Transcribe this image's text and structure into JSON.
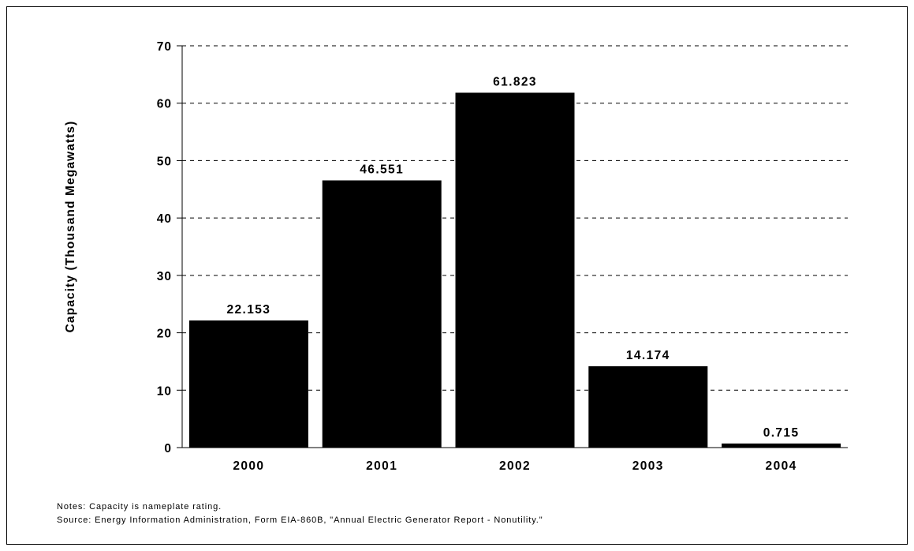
{
  "chart_data": {
    "type": "bar",
    "categories": [
      "2000",
      "2001",
      "2002",
      "2003",
      "2004"
    ],
    "values": [
      22.153,
      46.551,
      61.823,
      14.174,
      0.715
    ],
    "value_labels": [
      "22.153",
      "46.551",
      "61.823",
      "14.174",
      "0.715"
    ],
    "title": "",
    "xlabel": "",
    "ylabel": "Capacity  (Thousand Megawatts)",
    "ylim": [
      0,
      70
    ],
    "yticks": [
      0,
      10,
      20,
      30,
      40,
      50,
      60,
      70
    ],
    "grid": "horizontal dashed",
    "legend": "none",
    "bar_color": "#000000"
  },
  "footer": {
    "notes": "Notes:  Capacity is nameplate rating.",
    "source": "Source:  Energy Information Administration, Form EIA-860B, \"Annual Electric Generator Report - Nonutility.\""
  }
}
